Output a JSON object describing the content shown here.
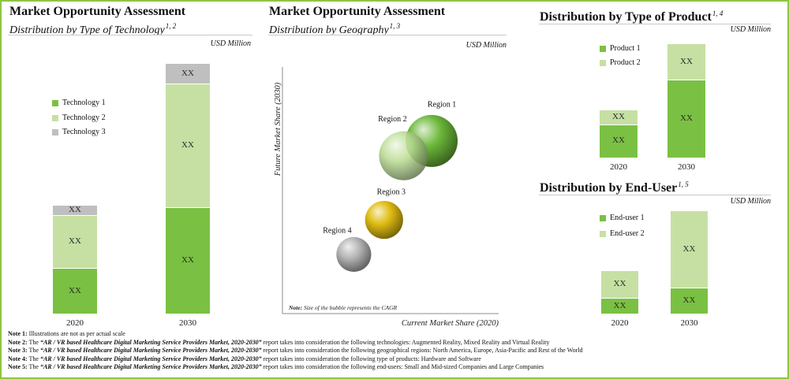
{
  "page": {
    "border_color": "#8dc63f"
  },
  "chart_data": [
    {
      "type": "bar",
      "stacked": true,
      "title": "Market Opportunity Assessment",
      "subtitle": "Distribution by Type of Technology",
      "superscript": "1, 2",
      "unit": "USD Million",
      "categories": [
        "2020",
        "2030"
      ],
      "series": [
        {
          "name": "Technology 1",
          "color": "#7ac143",
          "values": [
            18,
            42
          ],
          "labels": [
            "XX",
            "XX"
          ]
        },
        {
          "name": "Technology 2",
          "color": "#c6e0a4",
          "values": [
            21,
            49
          ],
          "labels": [
            "XX",
            "XX"
          ]
        },
        {
          "name": "Technology 3",
          "color": "#bfbfbf",
          "values": [
            4,
            8
          ],
          "labels": [
            "XX",
            "XX"
          ]
        }
      ],
      "ylim": [
        0,
        100
      ],
      "legend": "top-left",
      "grid": false
    },
    {
      "type": "scatter",
      "bubble": true,
      "title": "Market Opportunity Assessment",
      "subtitle": "Distribution by Geography",
      "superscript": "1, 3",
      "unit": "USD Million",
      "xlabel": "Current Market Share (2020)",
      "ylabel": "Future Market Share (2030)",
      "xlim": [
        0,
        100
      ],
      "ylim": [
        0,
        100
      ],
      "points": [
        {
          "name": "Region 1",
          "x": 69,
          "y": 70,
          "size": 100,
          "color": "#6cb83a"
        },
        {
          "name": "Region 2",
          "x": 56,
          "y": 64,
          "size": 94,
          "color": "#b9dc92"
        },
        {
          "name": "Region 3",
          "x": 47,
          "y": 38,
          "size": 73,
          "color": "#e0bd12"
        },
        {
          "name": "Region 4",
          "x": 33,
          "y": 24,
          "size": 67,
          "color": "#b5b5b5"
        }
      ],
      "note_label": "Note:",
      "note": "Size of the bubble represents the CAGR",
      "grid": false
    },
    {
      "type": "bar",
      "stacked": true,
      "title": "Distribution by Type of Product",
      "superscript": "1, 4",
      "unit": "USD Million",
      "categories": [
        "2020",
        "2030"
      ],
      "series": [
        {
          "name": "Product 1",
          "color": "#7ac143",
          "values": [
            29,
            68
          ],
          "labels": [
            "XX",
            "XX"
          ]
        },
        {
          "name": "Product 2",
          "color": "#c6e0a4",
          "values": [
            13,
            32
          ],
          "labels": [
            "XX",
            "XX"
          ]
        }
      ],
      "ylim": [
        0,
        100
      ],
      "legend": "top-left",
      "grid": false
    },
    {
      "type": "bar",
      "stacked": true,
      "title": "Distribution by End-User",
      "superscript": "1, 5",
      "unit": "USD Million",
      "categories": [
        "2020",
        "2030"
      ],
      "series": [
        {
          "name": "End-user 1",
          "color": "#7ac143",
          "values": [
            15,
            25
          ],
          "labels": [
            "XX",
            "XX"
          ]
        },
        {
          "name": "End-user 2",
          "color": "#c6e0a4",
          "values": [
            27,
            75
          ],
          "labels": [
            "XX",
            "XX"
          ]
        }
      ],
      "ylim": [
        0,
        100
      ],
      "legend": "top-left",
      "grid": false
    }
  ],
  "notes": [
    {
      "label": "Note 1:",
      "text": "Illustrations are not as per actual scale"
    },
    {
      "label": "Note 2:",
      "lead": "The",
      "report": "“AR / VR based Healthcare Digital Marketing Service Providers Market, 2020-2030”",
      "text": "report takes into consideration the following technologies: Augmented Reality, Mixed Reality and Virtual Reality"
    },
    {
      "label": "Note 3:",
      "lead": "The",
      "report": "“AR / VR based Healthcare Digital Marketing Service Providers Market, 2020-2030”",
      "text": "report takes into consideration the following geographical regions: North America, Europe, Asia-Pacific and Rest of the World"
    },
    {
      "label": "Note 4:",
      "lead": "The",
      "report": "“AR / VR based Healthcare Digital Marketing Service Providers Market, 2020-2030”",
      "text": "report takes into consideration the following type of products: Hardware and Software"
    },
    {
      "label": "Note 5:",
      "lead": "The",
      "report": "“AR / VR based Healthcare Digital Marketing Service Providers Market, 2020-2030”",
      "text": "report takes into consideration the following end-users: Small and Mid-sized Companies and Large Companies"
    }
  ]
}
